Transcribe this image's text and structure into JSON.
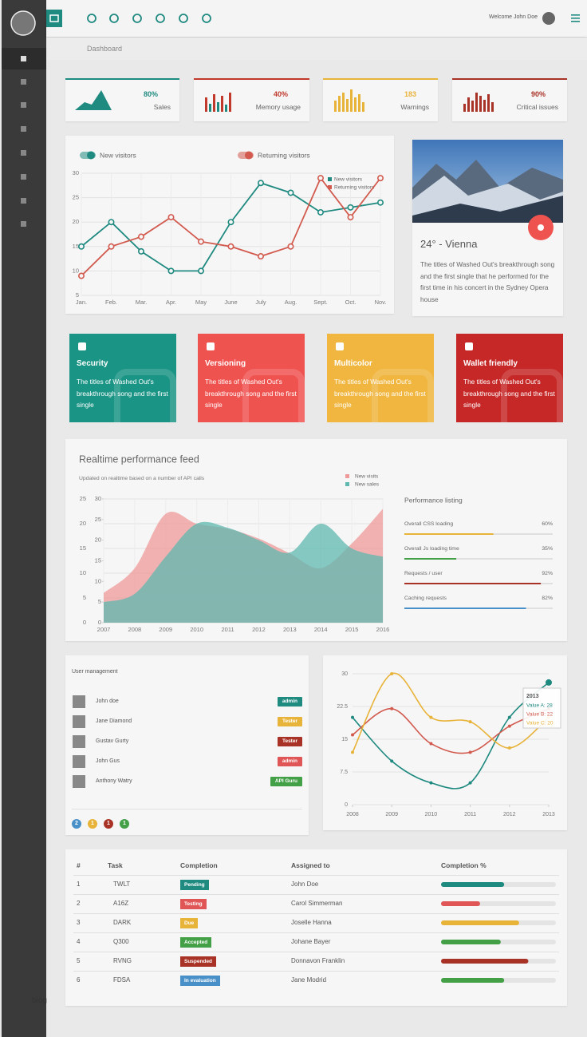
{
  "sidebar": {
    "watermark": "blog"
  },
  "header": {
    "welcome": "Welcome John Doe"
  },
  "breadcrumb": "Dashboard",
  "stats": [
    {
      "value": "80%",
      "label": "Sales",
      "color": "#1f8a80"
    },
    {
      "value": "40%",
      "label": "Memory usage",
      "color": "#c0392b"
    },
    {
      "value": "183",
      "label": "Warnings",
      "color": "#e8b339"
    },
    {
      "value": "90%",
      "label": "Critical issues",
      "color": "#a93226"
    }
  ],
  "chart_data": [
    {
      "type": "line",
      "categories": [
        "Jan.",
        "Feb.",
        "Mar.",
        "Apr.",
        "May",
        "June",
        "July",
        "Aug.",
        "Sept.",
        "Oct.",
        "Nov."
      ],
      "series": [
        {
          "name": "New visitors",
          "color": "#1f8a80",
          "values": [
            15,
            20,
            14,
            10,
            10,
            20,
            28,
            26,
            22,
            23,
            24
          ]
        },
        {
          "name": "Returning visitors",
          "color": "#d25a4e",
          "values": [
            9,
            15,
            17,
            21,
            16,
            15,
            13,
            15,
            29,
            21,
            29
          ]
        }
      ],
      "ylim": [
        5,
        30
      ],
      "yticks": [
        5,
        10,
        15,
        20,
        25,
        30
      ],
      "grid": true
    },
    {
      "type": "area",
      "title": "Realtime performance feed",
      "subtitle": "Updated on realtime based on a number of API calls",
      "x": [
        2007,
        2008,
        2009,
        2010,
        2011,
        2012,
        2013,
        2014,
        2015,
        2016
      ],
      "xlim": [
        2007,
        2016
      ],
      "xticks": [
        2007,
        2008,
        2009,
        2010,
        2011,
        2012,
        2013,
        2014,
        2015,
        2016
      ],
      "ylim": [
        0,
        25
      ],
      "yticks": [
        0,
        5,
        10,
        15,
        20,
        25
      ],
      "y2lim": [
        0,
        30
      ],
      "y2ticks": [
        0,
        5,
        10,
        15,
        20,
        25,
        30
      ],
      "series": [
        {
          "name": "New visits",
          "color": "#ef9a9a",
          "values": [
            6,
            11,
            22,
            20,
            19,
            17,
            14,
            11,
            16,
            23
          ]
        },
        {
          "name": "New sales",
          "color": "#5fb8b0",
          "axis": "y2",
          "values": [
            5,
            7,
            16,
            24,
            23,
            20,
            17,
            24,
            18,
            16
          ]
        }
      ],
      "grid": true
    },
    {
      "type": "line",
      "smooth": true,
      "x": [
        2008,
        2009,
        2010,
        2011,
        2012,
        2013
      ],
      "xlim": [
        2008,
        2013
      ],
      "xticks": [
        2008,
        2009,
        2010,
        2011,
        2012,
        2013
      ],
      "ylim": [
        0,
        30
      ],
      "yticks": [
        0,
        7.5,
        15,
        22.5,
        30
      ],
      "series": [
        {
          "name": "Value A",
          "color": "#1f8a80",
          "values": [
            20,
            10,
            5,
            5,
            20,
            28
          ]
        },
        {
          "name": "Value B",
          "color": "#d25a4e",
          "values": [
            16,
            22,
            14,
            12,
            18,
            22
          ]
        },
        {
          "name": "Value C",
          "color": "#e8b339",
          "values": [
            12,
            30,
            20,
            19,
            13,
            20
          ]
        }
      ],
      "grid": true,
      "tooltip": {
        "title": "2013",
        "lines": [
          "Value A: 28",
          "Value B: 22",
          "Value C: 20"
        ]
      }
    }
  ],
  "weather": {
    "title": "24° - Vienna",
    "text": "The titles of Washed Out's breakthrough song and the first single that he performed for the first time in his concert in the Sydney Opera house"
  },
  "features": [
    {
      "title": "Security",
      "text": "The titles of Washed Out's breakthrough song and the first single",
      "color": "#1a9485"
    },
    {
      "title": "Versioning",
      "text": "The titles of Washed Out's breakthrough song and the first single",
      "color": "#ef5350"
    },
    {
      "title": "Multicolor",
      "text": "The titles of Washed Out's breakthrough song and the first single",
      "color": "#f0b63f"
    },
    {
      "title": "Wallet friendly",
      "text": "The titles of Washed Out's breakthrough song and the first single",
      "color": "#c62828"
    }
  ],
  "performance": {
    "title": "Performance listing",
    "items": [
      {
        "name": "Overall CSS loading",
        "value": 60,
        "value_label": "60%",
        "color": "#e8b339"
      },
      {
        "name": "Overall Js loading time",
        "value": 35,
        "value_label": "35%",
        "color": "#43a047"
      },
      {
        "name": "Requests / user",
        "value": 92,
        "value_label": "92%",
        "color": "#a93226"
      },
      {
        "name": "Caching requests",
        "value": 82,
        "value_label": "82%",
        "color": "#4a90c8"
      }
    ]
  },
  "users": {
    "title": "User management",
    "list": [
      {
        "name": "John doe",
        "role": "admin",
        "color": "#1f8a80"
      },
      {
        "name": "Jane Diamond",
        "role": "Tester",
        "color": "#e8b339"
      },
      {
        "name": "Gustav Gurty",
        "role": "Tester",
        "color": "#a93226"
      },
      {
        "name": "John Gus",
        "role": "admin",
        "color": "#e05555"
      },
      {
        "name": "Anthony Watry",
        "role": "API Guru",
        "color": "#43a047"
      }
    ],
    "counters": [
      {
        "value": 2,
        "color": "#4a90c8"
      },
      {
        "value": 1,
        "color": "#e8b339"
      },
      {
        "value": 1,
        "color": "#a93226"
      },
      {
        "value": 1,
        "color": "#43a047"
      }
    ]
  },
  "tasks": {
    "headers": [
      "#",
      "Task",
      "Completion",
      "Assigned to",
      "Completion %"
    ],
    "rows": [
      {
        "id": 1,
        "task": "TWLT",
        "status": "Pending",
        "status_color": "#1f8a80",
        "assigned": "John Doe",
        "completion": 55,
        "bar_color": "#1f8a80"
      },
      {
        "id": 2,
        "task": "A16Z",
        "status": "Testing",
        "status_color": "#e05555",
        "assigned": "Carol Simmerman",
        "completion": 34,
        "bar_color": "#e05555"
      },
      {
        "id": 3,
        "task": "DARK",
        "status": "Due",
        "status_color": "#e8b339",
        "assigned": "Joselle Hanna",
        "completion": 68,
        "bar_color": "#e8b339"
      },
      {
        "id": 4,
        "task": "Q300",
        "status": "Accepted",
        "status_color": "#43a047",
        "assigned": "Johane Bayer",
        "completion": 52,
        "bar_color": "#43a047"
      },
      {
        "id": 5,
        "task": "RVNG",
        "status": "Suspended",
        "status_color": "#a93226",
        "assigned": "Donnavon Franklin",
        "completion": 76,
        "bar_color": "#a93226"
      },
      {
        "id": 6,
        "task": "FDSA",
        "status": "In evaluation",
        "status_color": "#4a90c8",
        "assigned": "Jane Modrid",
        "completion": 55,
        "bar_color": "#43a047"
      }
    ]
  }
}
